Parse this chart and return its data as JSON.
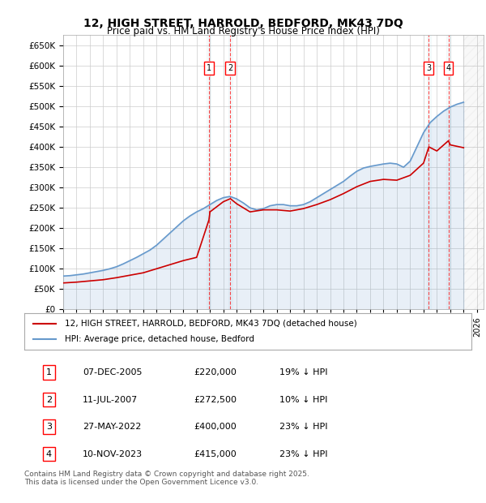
{
  "title": "12, HIGH STREET, HARROLD, BEDFORD, MK43 7DQ",
  "subtitle": "Price paid vs. HM Land Registry's House Price Index (HPI)",
  "ylabel": "",
  "ylim": [
    0,
    675000
  ],
  "yticks": [
    0,
    50000,
    100000,
    150000,
    200000,
    250000,
    300000,
    350000,
    400000,
    450000,
    500000,
    550000,
    600000,
    650000
  ],
  "xlim_start": 1995.0,
  "xlim_end": 2026.5,
  "background_color": "#ffffff",
  "grid_color": "#cccccc",
  "sale_color": "#cc0000",
  "hpi_color": "#6699cc",
  "sale_label": "12, HIGH STREET, HARROLD, BEDFORD, MK43 7DQ (detached house)",
  "hpi_label": "HPI: Average price, detached house, Bedford",
  "transactions": [
    {
      "num": 1,
      "date": "07-DEC-2005",
      "price": 220000,
      "pct": "19%",
      "x": 2005.92
    },
    {
      "num": 2,
      "date": "11-JUL-2007",
      "price": 272500,
      "pct": "10%",
      "x": 2007.53
    },
    {
      "num": 3,
      "date": "27-MAY-2022",
      "price": 400000,
      "pct": "23%",
      "x": 2022.4
    },
    {
      "num": 4,
      "date": "10-NOV-2023",
      "price": 415000,
      "pct": "23%",
      "x": 2023.86
    }
  ],
  "footer": "Contains HM Land Registry data © Crown copyright and database right 2025.\nThis data is licensed under the Open Government Licence v3.0.",
  "hpi_x": [
    1995.0,
    1995.5,
    1996.0,
    1996.5,
    1997.0,
    1997.5,
    1998.0,
    1998.5,
    1999.0,
    1999.5,
    2000.0,
    2000.5,
    2001.0,
    2001.5,
    2002.0,
    2002.5,
    2003.0,
    2003.5,
    2004.0,
    2004.5,
    2005.0,
    2005.5,
    2006.0,
    2006.5,
    2007.0,
    2007.5,
    2008.0,
    2008.5,
    2009.0,
    2009.5,
    2010.0,
    2010.5,
    2011.0,
    2011.5,
    2012.0,
    2012.5,
    2013.0,
    2013.5,
    2014.0,
    2014.5,
    2015.0,
    2015.5,
    2016.0,
    2016.5,
    2017.0,
    2017.5,
    2018.0,
    2018.5,
    2019.0,
    2019.5,
    2020.0,
    2020.5,
    2021.0,
    2021.5,
    2022.0,
    2022.5,
    2023.0,
    2023.5,
    2024.0,
    2024.5,
    2025.0
  ],
  "hpi_y": [
    82000,
    83000,
    85000,
    87000,
    90000,
    93000,
    96000,
    100000,
    105000,
    112000,
    120000,
    128000,
    137000,
    146000,
    158000,
    173000,
    188000,
    203000,
    218000,
    230000,
    240000,
    248000,
    258000,
    268000,
    275000,
    278000,
    272000,
    262000,
    250000,
    245000,
    248000,
    255000,
    258000,
    258000,
    255000,
    255000,
    258000,
    265000,
    275000,
    285000,
    295000,
    305000,
    315000,
    328000,
    340000,
    348000,
    352000,
    355000,
    358000,
    360000,
    358000,
    350000,
    365000,
    400000,
    435000,
    460000,
    475000,
    488000,
    498000,
    505000,
    510000
  ],
  "sale_x": [
    1995.0,
    1996.0,
    1997.0,
    1998.0,
    1999.0,
    2000.0,
    2001.0,
    2002.0,
    2003.0,
    2004.0,
    2005.0,
    2005.92,
    2006.0,
    2007.0,
    2007.53,
    2008.0,
    2009.0,
    2010.0,
    2011.0,
    2012.0,
    2013.0,
    2014.0,
    2015.0,
    2016.0,
    2017.0,
    2018.0,
    2019.0,
    2020.0,
    2021.0,
    2022.0,
    2022.4,
    2023.0,
    2023.86,
    2024.0,
    2025.0
  ],
  "sale_y": [
    65000,
    67000,
    70000,
    73000,
    78000,
    84000,
    90000,
    100000,
    110000,
    120000,
    128000,
    220000,
    240000,
    265000,
    272500,
    260000,
    240000,
    245000,
    245000,
    242000,
    248000,
    258000,
    270000,
    285000,
    302000,
    315000,
    320000,
    318000,
    330000,
    360000,
    400000,
    390000,
    415000,
    405000,
    398000
  ]
}
